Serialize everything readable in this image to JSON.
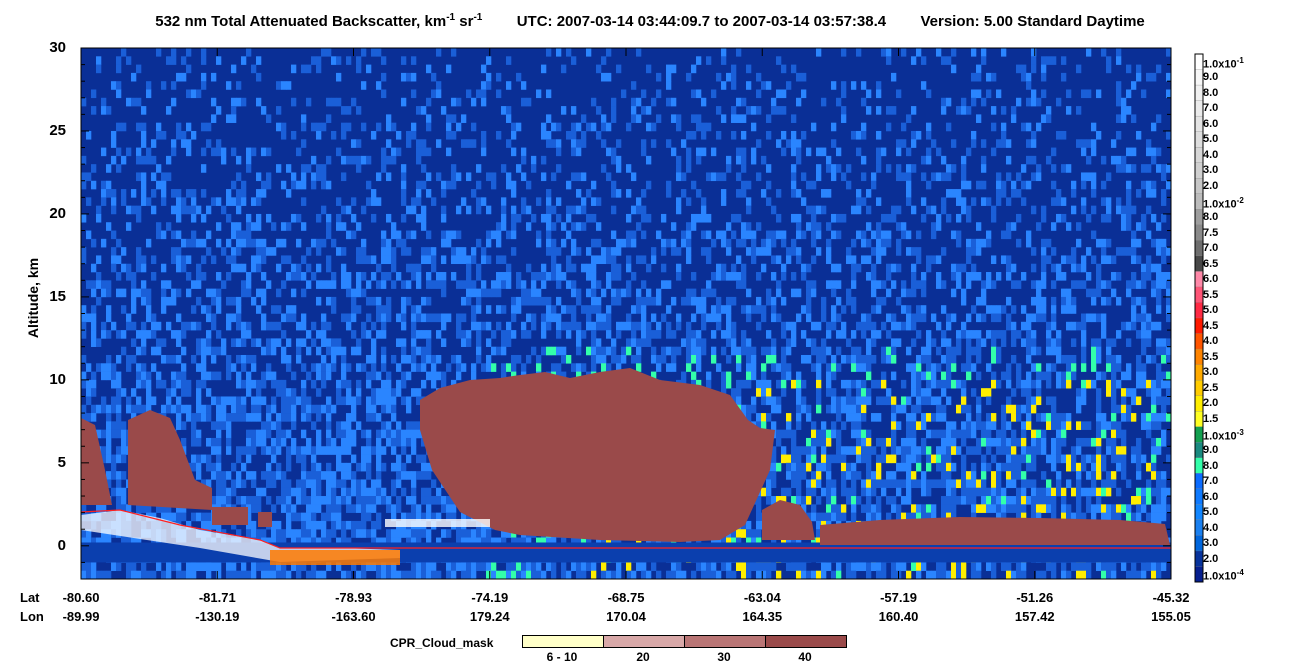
{
  "header": {
    "title_prefix": "532 nm Total Attenuated Backscatter, km",
    "title_exp1": "-1",
    "title_sr": " sr",
    "title_exp2": "-1",
    "utc_label": "UTC:",
    "utc_start": "2007-03-14 03:44:09.7",
    "utc_to": "to",
    "utc_end": "2007-03-14 03:57:38.4",
    "version_label": "Version: 5.00",
    "mode": "Standard",
    "daylight": "Daytime"
  },
  "chart_data": {
    "type": "heatmap",
    "ylabel": "Altitude, km",
    "ylim": [
      -2,
      30
    ],
    "yticks": [
      "30",
      "25",
      "20",
      "15",
      "10",
      "5",
      "0"
    ],
    "x_rows": [
      {
        "name": "Lat",
        "values": [
          "-80.60",
          "-81.71",
          "-78.93",
          "-74.19",
          "-68.75",
          "-63.04",
          "-57.19",
          "-51.26",
          "-45.32"
        ]
      },
      {
        "name": "Lon",
        "values": [
          "-89.99",
          "-130.19",
          "-163.60",
          "179.24",
          "170.04",
          "164.35",
          "160.40",
          "157.42",
          "155.05"
        ]
      }
    ],
    "features": [
      {
        "name": "cloud",
        "x_range": [
          -80.6,
          -81.2
        ],
        "alt": [
          2.0,
          8.0
        ]
      },
      {
        "name": "cloud",
        "x_range": [
          -81.5,
          -80.4
        ],
        "alt": [
          2.5,
          8.3
        ]
      },
      {
        "name": "deep cloud",
        "lat_range": [
          -75.5,
          -63.0
        ],
        "alt": [
          0.5,
          10.8
        ]
      },
      {
        "name": "low cloud",
        "lat_range": [
          -63.0,
          -45.32
        ],
        "alt": [
          0.2,
          2.0
        ]
      }
    ],
    "colorbar": {
      "levels": [
        {
          "label": "1.0x10",
          "exp": "-1",
          "color": "#ffffff"
        },
        {
          "label": "9.0",
          "color": "#f7f7f7"
        },
        {
          "label": "8.0",
          "color": "#f0f0f0"
        },
        {
          "label": "7.0",
          "color": "#ebebeb"
        },
        {
          "label": "6.0",
          "color": "#e4e4e4"
        },
        {
          "label": "5.0",
          "color": "#dedede"
        },
        {
          "label": "4.0",
          "color": "#d7d7d7"
        },
        {
          "label": "3.0",
          "color": "#d0d0d0"
        },
        {
          "label": "2.0",
          "color": "#c7c7c7"
        },
        {
          "label": "1.0x10",
          "exp": "-2",
          "color": "#bcbcbc"
        },
        {
          "label": "8.0",
          "color": "#9e9e9e"
        },
        {
          "label": "7.5",
          "color": "#8a8a8a"
        },
        {
          "label": "7.0",
          "color": "#6e6e6e"
        },
        {
          "label": "6.5",
          "color": "#484848"
        },
        {
          "label": "6.0",
          "color": "#ff88a8"
        },
        {
          "label": "5.5",
          "color": "#ff5577"
        },
        {
          "label": "5.0",
          "color": "#ff2a44"
        },
        {
          "label": "4.5",
          "color": "#ff1a00"
        },
        {
          "label": "4.0",
          "color": "#ff5500"
        },
        {
          "label": "3.5",
          "color": "#ff8400"
        },
        {
          "label": "3.0",
          "color": "#ffaa00"
        },
        {
          "label": "2.5",
          "color": "#ffcc00"
        },
        {
          "label": "2.0",
          "color": "#ffee00"
        },
        {
          "label": "1.5",
          "color": "#ffff22"
        },
        {
          "label": "1.0x10",
          "exp": "-3",
          "color": "#13a050"
        },
        {
          "label": "9.0",
          "color": "#1a8a80"
        },
        {
          "label": "8.0",
          "color": "#33ffaa"
        },
        {
          "label": "7.0",
          "color": "#0a6bff"
        },
        {
          "label": "6.0",
          "color": "#0f7aff"
        },
        {
          "label": "5.0",
          "color": "#1286ff"
        },
        {
          "label": "4.0",
          "color": "#1a80f0"
        },
        {
          "label": "3.0",
          "color": "#0066dd"
        },
        {
          "label": "2.0",
          "color": "#07339c"
        },
        {
          "label": "1.0x10",
          "exp": "-4",
          "color": "#061f8f"
        }
      ]
    },
    "cloud_mask_legend": {
      "title": "CPR_Cloud_mask",
      "items": [
        {
          "label": "6 - 10",
          "color": "#ffffc8"
        },
        {
          "label": "20",
          "color": "#d8a8a8"
        },
        {
          "label": "30",
          "color": "#b97575"
        },
        {
          "label": "40",
          "color": "#9a4a4a"
        }
      ]
    }
  },
  "colors": {
    "background_blue": "#0a2f96",
    "noise_blue": "#1f6fe8",
    "cloud_mask": "#9a4a4a"
  }
}
